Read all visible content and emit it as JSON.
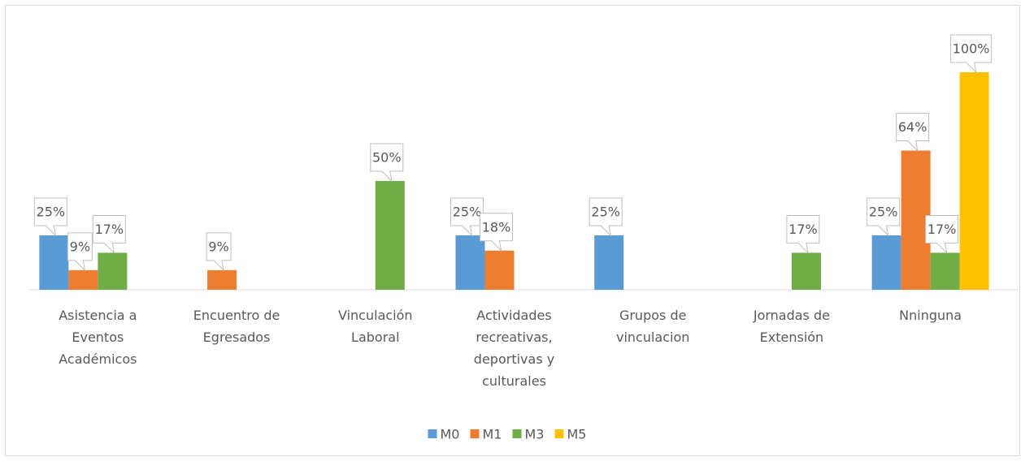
{
  "chart_data": {
    "type": "bar",
    "categories": [
      "Asistencia a Eventos Académicos",
      "Encuentro de Egresados",
      "Vinculación Laboral",
      "Actividades recreativas, deportivas y culturales",
      "Grupos de vinculacion",
      "Jornadas de Extensión",
      "Nninguna"
    ],
    "series": [
      {
        "name": "M0",
        "color": "#5b9bd5",
        "values": [
          25,
          null,
          null,
          25,
          25,
          null,
          25
        ],
        "value_labels": [
          "25%",
          null,
          null,
          "25%",
          "25%",
          null,
          "25%"
        ]
      },
      {
        "name": "M1",
        "color": "#ed7d31",
        "values": [
          9,
          9,
          null,
          18,
          null,
          null,
          64
        ],
        "value_labels": [
          "9%",
          "9%",
          null,
          "18%",
          null,
          null,
          "64%"
        ]
      },
      {
        "name": "M3",
        "color": "#70ad47",
        "values": [
          17,
          null,
          50,
          null,
          null,
          17,
          17
        ],
        "value_labels": [
          "17%",
          null,
          "50%",
          null,
          null,
          "17%",
          "17%"
        ]
      },
      {
        "name": "M5",
        "color": "#ffc000",
        "values": [
          null,
          null,
          null,
          null,
          null,
          null,
          100
        ],
        "value_labels": [
          null,
          null,
          null,
          null,
          null,
          null,
          "100%"
        ]
      }
    ],
    "ylim": [
      0,
      100
    ],
    "legend": "bottom"
  }
}
